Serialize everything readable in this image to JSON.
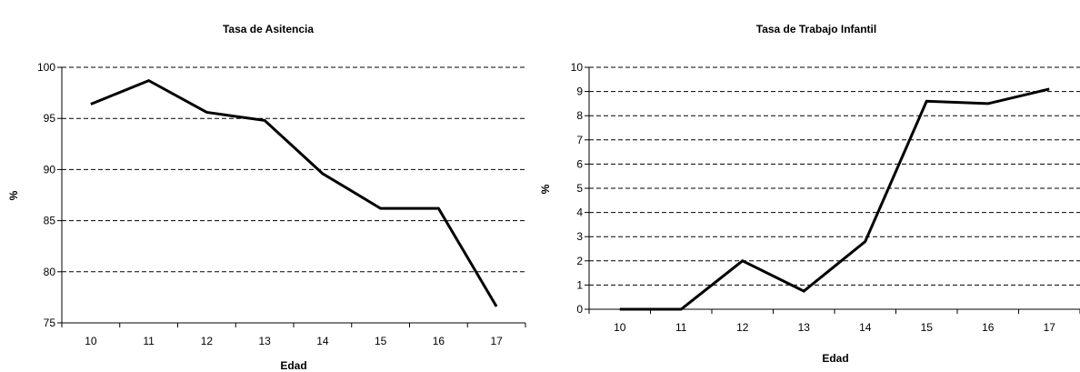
{
  "chart_data": [
    {
      "type": "line",
      "title": "Tasa de Asitencia",
      "xlabel": "Edad",
      "ylabel": "%",
      "categories": [
        "10",
        "11",
        "12",
        "13",
        "14",
        "15",
        "16",
        "17"
      ],
      "series": [
        {
          "values": [
            96.4,
            98.7,
            95.6,
            94.8,
            89.6,
            86.2,
            86.2,
            76.6
          ]
        }
      ],
      "ylim": [
        75,
        100
      ],
      "yticks": [
        75,
        80,
        85,
        90,
        95,
        100
      ],
      "grid": "horizontal dashed",
      "line_color": "#000000"
    },
    {
      "type": "line",
      "title": "Tasa de Trabajo Infantil",
      "xlabel": "Edad",
      "ylabel": "%",
      "categories": [
        "10",
        "11",
        "12",
        "13",
        "14",
        "15",
        "16",
        "17"
      ],
      "series": [
        {
          "values": [
            0.0,
            0.0,
            2.0,
            0.75,
            2.8,
            8.6,
            8.5,
            9.1
          ]
        }
      ],
      "ylim": [
        0,
        10
      ],
      "yticks": [
        0,
        1,
        2,
        3,
        4,
        5,
        6,
        7,
        8,
        9,
        10
      ],
      "grid": "horizontal dashed",
      "line_color": "#000000"
    }
  ]
}
